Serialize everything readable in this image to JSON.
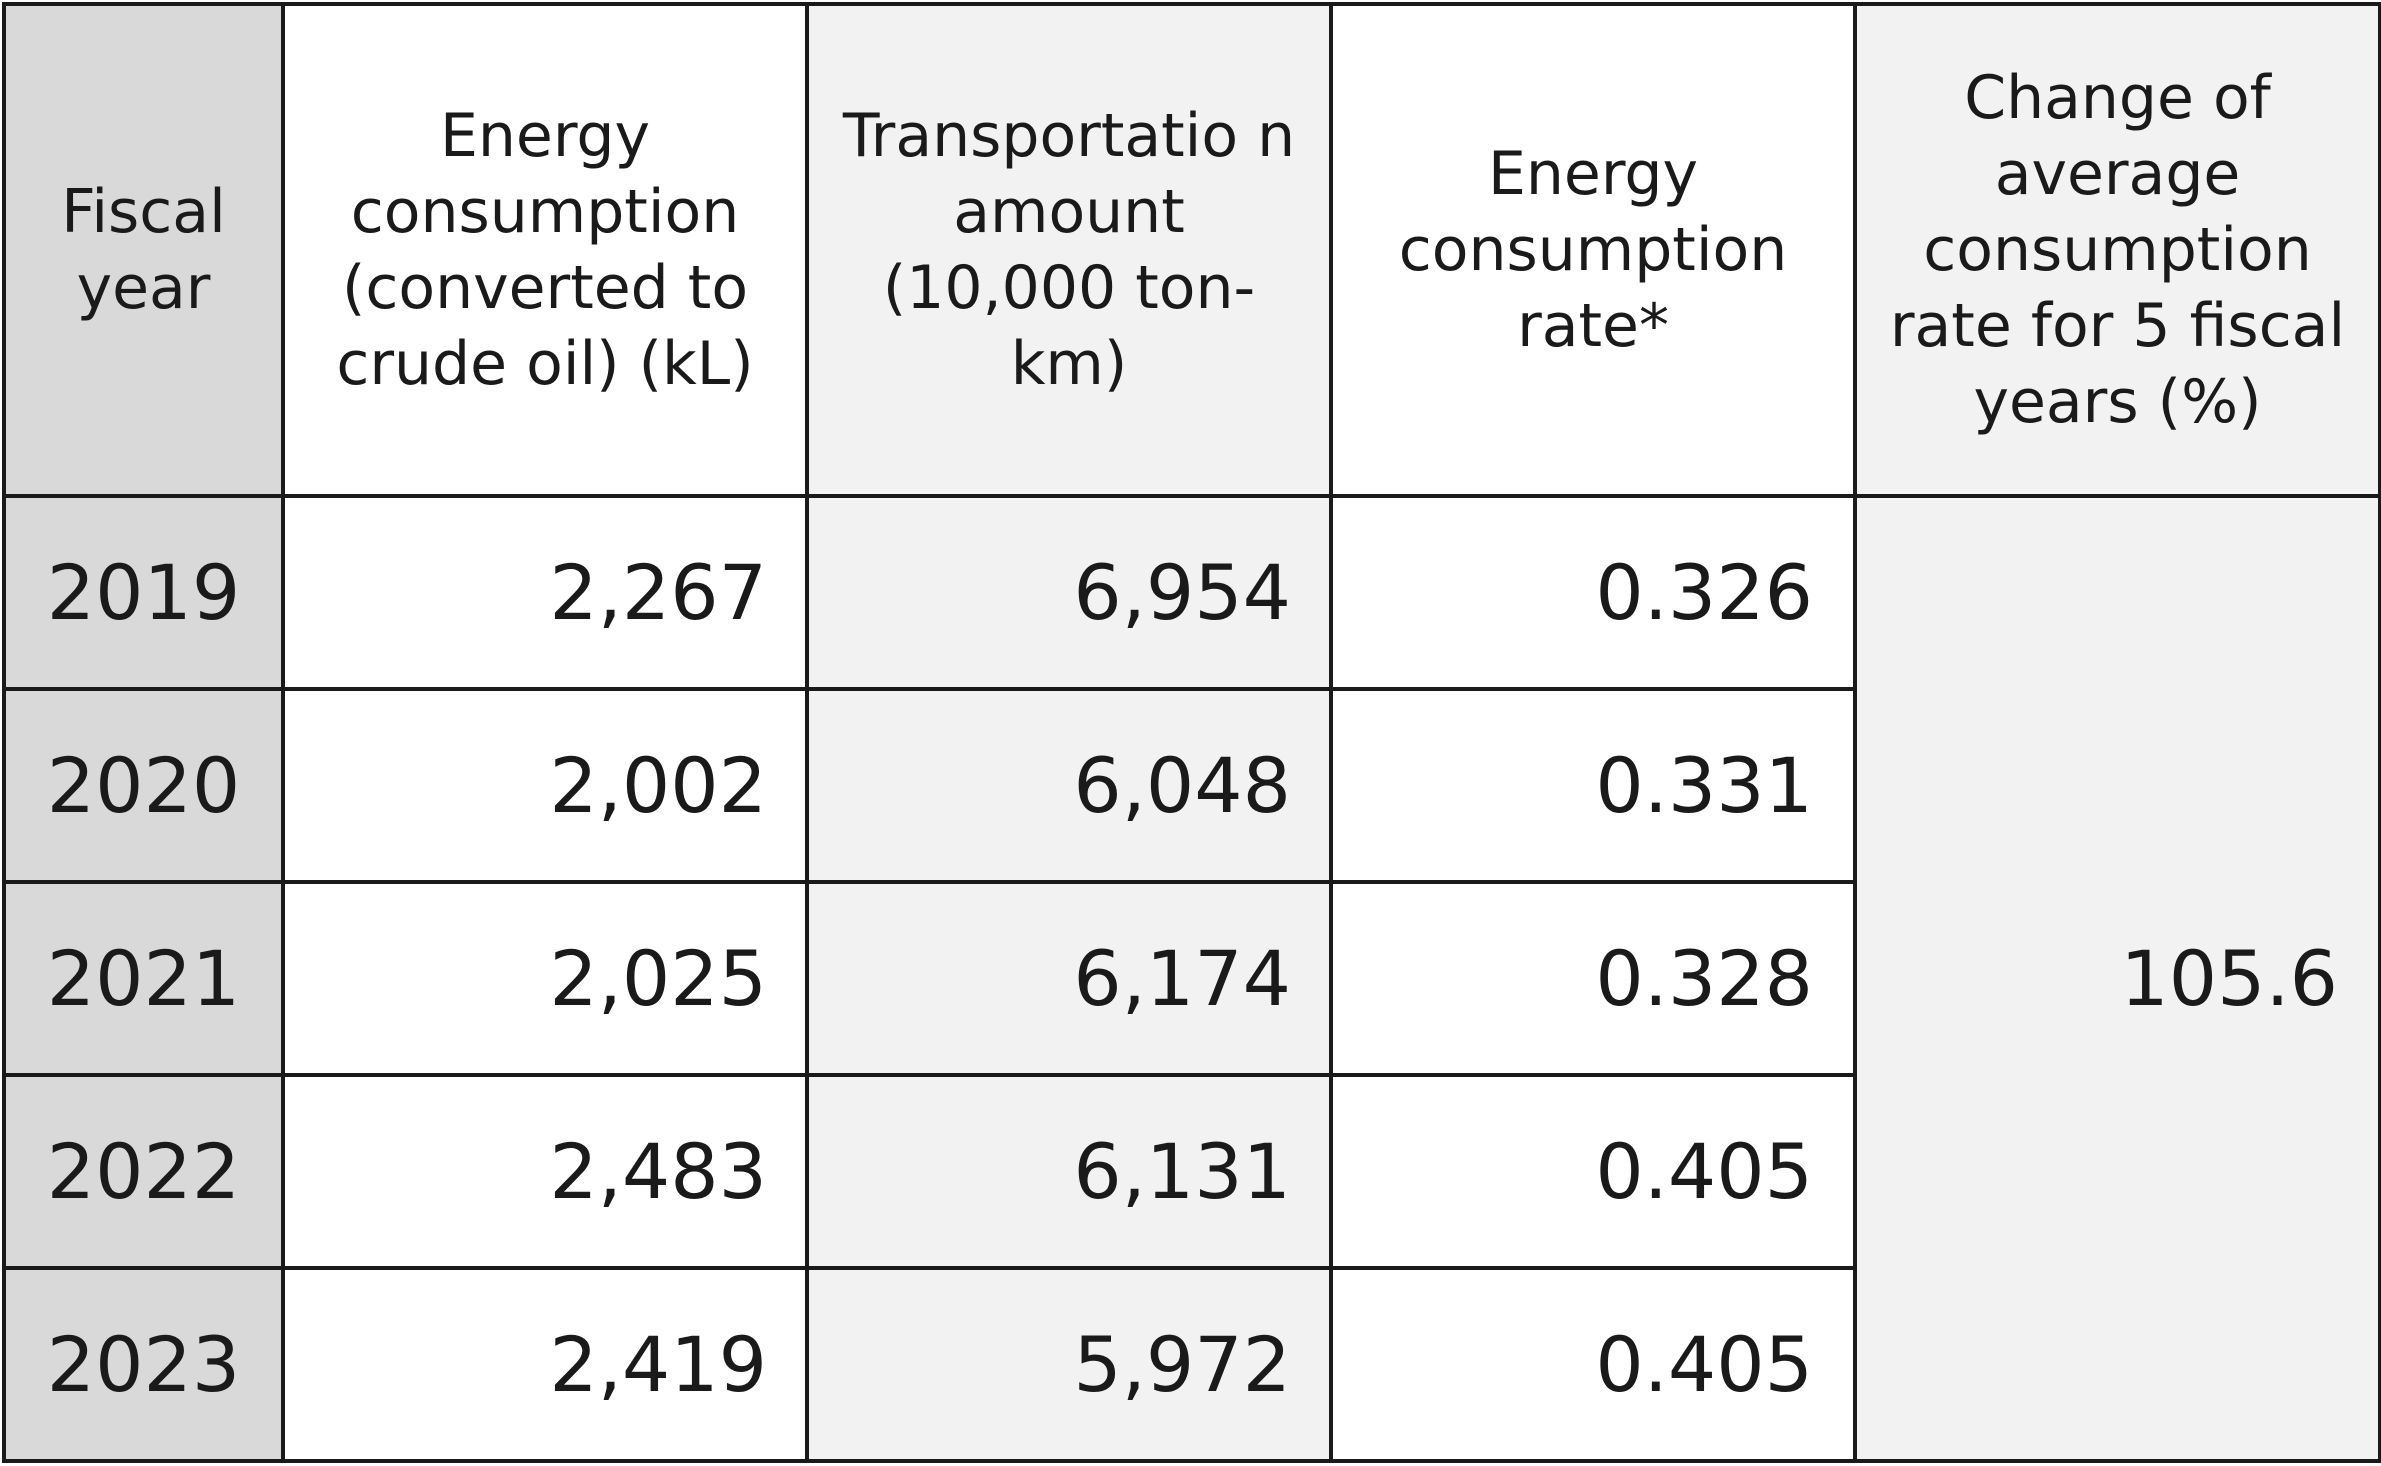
{
  "headers": {
    "fiscal_year": "Fiscal year",
    "energy_consumption": "Energy consumption (converted to crude oil) (kL)",
    "transportation_amount": "Transportatio n amount (10,000 ton-km)",
    "energy_consumption_rate": "Energy consumption rate*",
    "change_of_average": "Change of average consumption rate for 5 fiscal years (%)"
  },
  "rows": [
    {
      "year": "2019",
      "energy": "2,267",
      "transport": "6,954",
      "rate": "0.326"
    },
    {
      "year": "2020",
      "energy": "2,002",
      "transport": "6,048",
      "rate": "0.331"
    },
    {
      "year": "2021",
      "energy": "2,025",
      "transport": "6,174",
      "rate": "0.328"
    },
    {
      "year": "2022",
      "energy": "2,483",
      "transport": "6,131",
      "rate": "0.405"
    },
    {
      "year": "2023",
      "energy": "2,419",
      "transport": "5,972",
      "rate": "0.405"
    }
  ],
  "change_value": "105.6"
}
